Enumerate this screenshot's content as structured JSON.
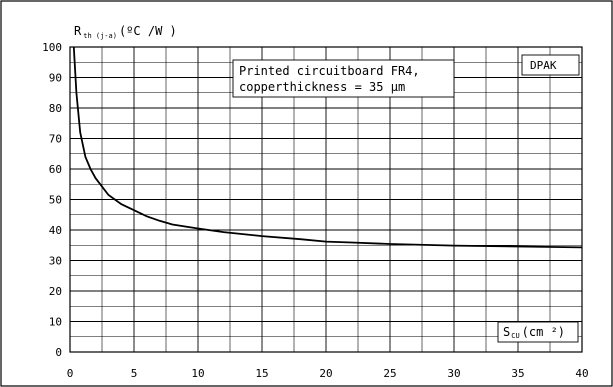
{
  "chart_data": {
    "type": "line",
    "xlim": [
      0,
      40
    ],
    "ylim": [
      0,
      100
    ],
    "x_ticks": [
      0,
      5,
      10,
      15,
      20,
      25,
      30,
      35,
      40
    ],
    "y_ticks": [
      0,
      10,
      20,
      30,
      40,
      50,
      60,
      70,
      80,
      90,
      100
    ],
    "grid": true,
    "ylabel": {
      "main": "R",
      "sub": "th (j-a)",
      "unit": "(ºC /W )"
    },
    "xlabel": {
      "main": "S",
      "sub": "CU",
      "unit": "(cm ²)"
    },
    "annotation_lines": [
      "Printed circuitboard FR4,",
      "copperthickness = 35 µm"
    ],
    "package_label": "DPAK",
    "series": [
      {
        "x": [
          0.3,
          0.5,
          0.8,
          1.2,
          1.6,
          2.0,
          3.0,
          4.0,
          5.0,
          6.0,
          7.0,
          8.0,
          10.0,
          12.0,
          15.0,
          18.0,
          20.0,
          22.0,
          25.0,
          30.0,
          35.0,
          40.0
        ],
        "y": [
          100,
          85,
          72,
          64,
          60,
          57,
          51.5,
          48.5,
          46.5,
          44.5,
          43,
          41.8,
          40.5,
          39.3,
          38,
          37,
          36.2,
          35.9,
          35.4,
          34.9,
          34.6,
          34.3
        ]
      }
    ]
  }
}
